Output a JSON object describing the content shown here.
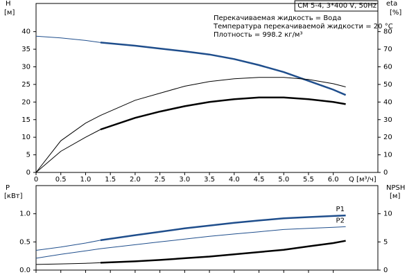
{
  "chart_data": [
    {
      "type": "line",
      "title": "CM 5-4, 3*400 V, 50Hz",
      "annotations": [
        "Перекачиваемая жидкость = Вода",
        "Температура перекачиваемой жидкости = 20 °C",
        "Плотность = 998.2 кг/м³"
      ],
      "ylabel": "H",
      "yunit": "[м]",
      "y2label": "eta",
      "y2unit": "[%]",
      "xlabel": "Q [м³/ч]",
      "x": [
        0,
        0.5,
        1.0,
        1.3,
        2.0,
        2.5,
        3.0,
        3.5,
        4.0,
        4.5,
        5.0,
        5.5,
        6.0,
        6.25
      ],
      "xlim": [
        0,
        6.9
      ],
      "xticks": [
        0,
        0.5,
        {
          "value": 1,
          "label": "1.0"
        },
        1.5,
        {
          "value": 2,
          "label": "2.0"
        },
        2.5,
        {
          "value": 3,
          "label": "3.0"
        },
        3.5,
        {
          "value": 4,
          "label": "4.0"
        },
        4.5,
        {
          "value": 5,
          "label": "5.0"
        },
        5.5,
        {
          "value": 6,
          "label": "6.0"
        }
      ],
      "ylim": [
        0,
        48
      ],
      "yticks": [
        0,
        5,
        10,
        15,
        20,
        25,
        30,
        35,
        40
      ],
      "y2lim": [
        0,
        96
      ],
      "y2ticks": [
        0,
        10,
        20,
        30,
        40,
        50,
        60,
        70,
        80
      ],
      "series": [
        {
          "color": "#1f4e8c",
          "linewidth": 1,
          "values": [
            38.7,
            38.2,
            37.5,
            36.9,
            null,
            null,
            null,
            null,
            null,
            null,
            null,
            null,
            null,
            null
          ]
        },
        {
          "color": "#1f4e8c",
          "linewidth": 2.5,
          "values": [
            null,
            null,
            null,
            36.9,
            36.0,
            35.2,
            34.4,
            33.5,
            32.2,
            30.5,
            28.5,
            26.0,
            23.5,
            22.0
          ]
        },
        {
          "color": "#000000",
          "linewidth": 1,
          "axis": "y2",
          "values": [
            0,
            18,
            28,
            32.4,
            41,
            45,
            49,
            51.6,
            53.2,
            54,
            54,
            52.8,
            50.4,
            48.6
          ]
        },
        {
          "color": "#000000",
          "linewidth": 1,
          "axis": "y2",
          "values": [
            0,
            12,
            20,
            24.4,
            null,
            null,
            null,
            null,
            null,
            null,
            null,
            null,
            null,
            null
          ]
        },
        {
          "color": "#000000",
          "linewidth": 2.5,
          "axis": "y2",
          "values": [
            null,
            null,
            null,
            24.4,
            31,
            34.6,
            37.6,
            40,
            41.6,
            42.6,
            42.6,
            41.6,
            40,
            38.8
          ]
        }
      ]
    },
    {
      "type": "line",
      "ylabel": "P",
      "yunit": "[кВт]",
      "y2label": "NPSH",
      "y2unit": "[м]",
      "x": [
        0,
        0.5,
        1.0,
        1.3,
        2.0,
        2.5,
        3.0,
        3.5,
        4.0,
        4.5,
        5.0,
        5.5,
        6.0,
        6.25
      ],
      "xlim": [
        0,
        6.9
      ],
      "ylim": [
        0,
        1.5
      ],
      "yticks": [
        {
          "value": 0,
          "label": "0.0"
        },
        0.5,
        {
          "value": 1,
          "label": "1.0"
        }
      ],
      "y2lim": [
        0,
        15
      ],
      "y2ticks": [
        0,
        5,
        10
      ],
      "series": [
        {
          "color": "#1f4e8c",
          "linewidth": 1,
          "values": [
            0.35,
            0.41,
            0.48,
            0.53,
            null,
            null,
            null,
            null,
            null,
            null,
            null,
            null,
            null,
            null
          ]
        },
        {
          "name": "P1",
          "color": "#1f4e8c",
          "linewidth": 2.5,
          "values": [
            null,
            null,
            null,
            0.53,
            0.62,
            0.68,
            0.74,
            0.79,
            0.84,
            0.88,
            0.92,
            0.94,
            0.96,
            0.97
          ]
        },
        {
          "name": "P2",
          "color": "#1f4e8c",
          "linewidth": 1,
          "values": [
            0.21,
            0.28,
            0.34,
            0.38,
            0.45,
            0.5,
            0.55,
            0.6,
            0.64,
            0.68,
            0.72,
            0.74,
            0.76,
            0.77
          ]
        },
        {
          "color": "#000000",
          "linewidth": 1,
          "axis": "y2",
          "values": [
            1.0,
            1.1,
            1.2,
            1.3,
            null,
            null,
            null,
            null,
            null,
            null,
            null,
            null,
            null,
            null
          ]
        },
        {
          "color": "#000000",
          "linewidth": 2.5,
          "axis": "y2",
          "values": [
            null,
            null,
            null,
            1.3,
            1.55,
            1.8,
            2.1,
            2.4,
            2.8,
            3.2,
            3.6,
            4.2,
            4.8,
            5.2
          ]
        }
      ]
    }
  ]
}
